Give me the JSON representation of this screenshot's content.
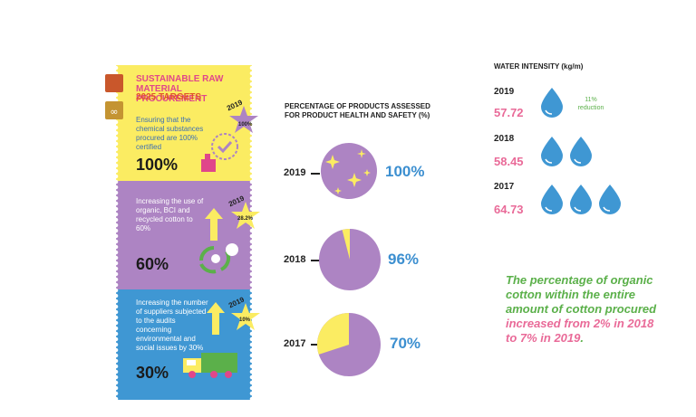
{
  "panel": {
    "title": "SUSTAINABLE RAW MATERIAL PROCUREMENT",
    "subtitle": "2025 TARGETS",
    "items": [
      {
        "text": "Ensuring that the chemical substances procured are 100% certified",
        "big": "100%",
        "star_year": "2019",
        "star_value": "100%",
        "color": "#fbec62"
      },
      {
        "text": "Increasing the use of organic, BCI and recycled cotton to 60%",
        "big": "60%",
        "star_year": "2019",
        "star_value": "28.2%",
        "color": "#ad84c3"
      },
      {
        "text": "Increasing the number of suppliers subjected to the audits concerning environmental and social issues by 30%",
        "big": "30%",
        "star_year": "2019",
        "star_value": "10%",
        "color": "#3f97d3"
      }
    ]
  },
  "assessed": {
    "title": "PERCENTAGE OF PRODUCTS ASSESSED FOR PRODUCT HEALTH AND SAFETY (%)",
    "rows": [
      {
        "year": "2019",
        "label": "100%",
        "value": 100
      },
      {
        "year": "2018",
        "label": "96%",
        "value": 96
      },
      {
        "year": "2017",
        "label": "70%",
        "value": 70
      }
    ],
    "colors": {
      "main": "#ad84c3",
      "rest": "#fbec62"
    }
  },
  "water": {
    "title": "WATER INTENSITY (kg/m)",
    "rows": [
      {
        "year": "2019",
        "value": "57.72",
        "drops": 1
      },
      {
        "year": "2018",
        "value": "58.45",
        "drops": 2
      },
      {
        "year": "2017",
        "value": "64.73",
        "drops": 3
      }
    ],
    "reduction": "11% reduction",
    "drop_color": "#3f97d3"
  },
  "quote": {
    "green": "The percentage of organic cotton within the entire amount of cotton procured",
    "pink1": " increased from 2% in 2018 to 7% in 2019",
    "end": "."
  }
}
